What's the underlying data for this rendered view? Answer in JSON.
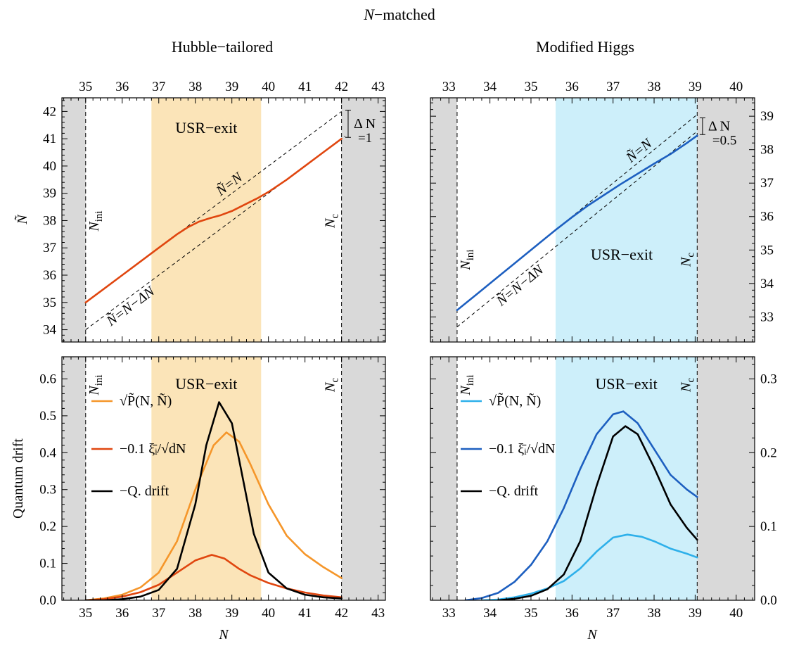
{
  "suptitle": "N−matched",
  "chart_data": [
    {
      "id": "top-left",
      "type": "line",
      "title": "Hubble−tailored",
      "ylabel": "Ñ",
      "xlabel": "",
      "xlim": [
        34.35,
        43.2
      ],
      "ylim": [
        33.55,
        42.5
      ],
      "xticks": [
        35,
        36,
        37,
        38,
        39,
        40,
        41,
        42,
        43
      ],
      "yticks": [
        34,
        35,
        36,
        37,
        38,
        39,
        40,
        41,
        42
      ],
      "shade_grey": [
        [
          34.35,
          35.0
        ],
        [
          42.0,
          43.2
        ]
      ],
      "band": {
        "x0": 36.8,
        "x1": 39.8,
        "color": "#fbe4b8",
        "label": "USR−exit"
      },
      "vlines": [
        {
          "x": 35.0,
          "label": "Nini"
        },
        {
          "x": 42.0,
          "label": "Nc"
        }
      ],
      "guides": [
        {
          "label": "Ñ=N",
          "x": [
            35,
            42
          ],
          "y": [
            35,
            42
          ]
        },
        {
          "label": "Ñ=N−ΔN",
          "x": [
            35,
            42.1
          ],
          "y": [
            34,
            41.1
          ]
        }
      ],
      "delta_label": [
        "Δ N",
        "=1"
      ],
      "series": [
        {
          "color": "#e0460f",
          "x": [
            35.0,
            35.5,
            36.0,
            36.5,
            37.0,
            37.5,
            37.8,
            38.1,
            38.4,
            38.7,
            39.0,
            39.3,
            39.7,
            40.0,
            40.5,
            41.0,
            41.5,
            42.0
          ],
          "y": [
            35.0,
            35.5,
            36.0,
            36.5,
            37.0,
            37.5,
            37.76,
            37.96,
            38.09,
            38.2,
            38.35,
            38.55,
            38.82,
            39.05,
            39.5,
            40.0,
            40.5,
            41.0
          ]
        }
      ]
    },
    {
      "id": "top-right",
      "type": "line",
      "title": "Modified Higgs",
      "ylabel": "",
      "xlabel": "",
      "xlim": [
        32.55,
        40.45
      ],
      "ylim": [
        32.25,
        39.55
      ],
      "xticks": [
        33,
        34,
        35,
        36,
        37,
        38,
        39,
        40
      ],
      "yticks": [
        33,
        34,
        35,
        36,
        37,
        38,
        39
      ],
      "shade_grey": [
        [
          32.55,
          33.2
        ],
        [
          39.05,
          40.45
        ]
      ],
      "band": {
        "x0": 35.6,
        "x1": 39.05,
        "color": "#cdeffa",
        "label": "USR−exit"
      },
      "vlines": [
        {
          "x": 33.2,
          "label": "Nini"
        },
        {
          "x": 39.05,
          "label": "Nc"
        }
      ],
      "guides": [
        {
          "label": "Ñ=N",
          "x": [
            35.6,
            39.05
          ],
          "y": [
            35.6,
            39.05
          ]
        },
        {
          "label": "Ñ=N−ΔN",
          "x": [
            33.2,
            39.05
          ],
          "y": [
            32.7,
            38.55
          ]
        }
      ],
      "delta_label": [
        "Δ N",
        "=0.5"
      ],
      "series": [
        {
          "color": "#1d5fc0",
          "x": [
            33.2,
            33.7,
            34.2,
            34.7,
            35.2,
            35.6,
            36.0,
            36.4,
            36.8,
            37.2,
            37.6,
            38.0,
            38.4,
            38.8,
            39.05
          ],
          "y": [
            33.2,
            33.7,
            34.2,
            34.7,
            35.2,
            35.6,
            35.98,
            36.34,
            36.66,
            36.98,
            37.28,
            37.58,
            37.87,
            38.2,
            38.42
          ]
        }
      ]
    },
    {
      "id": "bottom-left",
      "type": "line",
      "title": "",
      "ylabel": "Quantum drift",
      "xlabel": "N",
      "xlim": [
        34.35,
        43.2
      ],
      "ylim": [
        0,
        0.66
      ],
      "xticks": [
        35,
        36,
        37,
        38,
        39,
        40,
        41,
        42,
        43
      ],
      "yticks": [
        0.0,
        0.1,
        0.2,
        0.3,
        0.4,
        0.5,
        0.6
      ],
      "yticklabels": [
        "0.0",
        "0.1",
        "0.2",
        "0.3",
        "0.4",
        "0.5",
        "0.6"
      ],
      "shade_grey": [
        [
          34.35,
          35.0
        ],
        [
          42.0,
          43.2
        ]
      ],
      "band": {
        "x0": 36.8,
        "x1": 39.8,
        "color": "#fbe4b8",
        "label": "USR−exit"
      },
      "vlines": [
        {
          "x": 35.0,
          "label": "Nini"
        },
        {
          "x": 42.0,
          "label": "Nc"
        }
      ],
      "legend": [
        {
          "color": "#f5962a",
          "label": "√P̃(N, Ñ)"
        },
        {
          "color": "#e0460f",
          "label": "−0.1 ξ̄ᵢ/√dN"
        },
        {
          "color": "#000000",
          "label": "−Q. drift"
        }
      ],
      "series": [
        {
          "name": "√P̃(N, Ñ)",
          "color": "#f5962a",
          "x": [
            35.0,
            35.5,
            36.0,
            36.5,
            37.0,
            37.5,
            38.0,
            38.5,
            38.85,
            39.2,
            39.5,
            40.0,
            40.5,
            41.0,
            41.5,
            42.0
          ],
          "y": [
            0.0,
            0.005,
            0.015,
            0.035,
            0.075,
            0.16,
            0.3,
            0.42,
            0.455,
            0.43,
            0.37,
            0.26,
            0.175,
            0.125,
            0.09,
            0.06
          ]
        },
        {
          "name": "−0.1 ξ̄ᵢ/√dN",
          "color": "#e0460f",
          "x": [
            35.0,
            35.5,
            36.0,
            36.5,
            37.0,
            37.5,
            38.0,
            38.45,
            38.8,
            39.2,
            39.5,
            40.0,
            40.5,
            41.0,
            41.5,
            42.0
          ],
          "y": [
            0.0,
            0.003,
            0.01,
            0.022,
            0.042,
            0.075,
            0.108,
            0.123,
            0.113,
            0.085,
            0.068,
            0.047,
            0.032,
            0.021,
            0.013,
            0.008
          ]
        },
        {
          "name": "−Q. drift",
          "color": "#000000",
          "x": [
            35.0,
            35.5,
            36.0,
            36.5,
            37.0,
            37.5,
            38.0,
            38.3,
            38.65,
            39.0,
            39.3,
            39.6,
            40.0,
            40.5,
            41.0,
            41.5,
            42.0
          ],
          "y": [
            0.0,
            0.0,
            0.003,
            0.01,
            0.028,
            0.085,
            0.26,
            0.42,
            0.537,
            0.48,
            0.33,
            0.18,
            0.075,
            0.032,
            0.015,
            0.008,
            0.005
          ]
        }
      ]
    },
    {
      "id": "bottom-right",
      "type": "line",
      "title": "",
      "ylabel": "",
      "xlabel": "N",
      "xlim": [
        32.55,
        40.45
      ],
      "ylim": [
        0,
        0.33
      ],
      "xticks": [
        33,
        34,
        35,
        36,
        37,
        38,
        39,
        40
      ],
      "yticks": [
        0.0,
        0.1,
        0.2,
        0.3
      ],
      "yticklabels": [
        "0.0",
        "0.1",
        "0.2",
        "0.3"
      ],
      "shade_grey": [
        [
          32.55,
          33.2
        ],
        [
          39.05,
          40.45
        ]
      ],
      "band": {
        "x0": 35.6,
        "x1": 39.05,
        "color": "#cdeffa",
        "label": "USR−exit"
      },
      "vlines": [
        {
          "x": 33.2,
          "label": "Nini"
        },
        {
          "x": 39.05,
          "label": "Nc"
        }
      ],
      "legend": [
        {
          "color": "#2eb0ea",
          "label": "√P̃(N, Ñ)"
        },
        {
          "color": "#1d5fc0",
          "label": "−0.1 ξ̄ᵢ/√dN"
        },
        {
          "color": "#000000",
          "label": "−Q. drift"
        }
      ],
      "series": [
        {
          "name": "√P̃(N, Ñ)",
          "color": "#2eb0ea",
          "x": [
            33.8,
            34.2,
            34.6,
            35.0,
            35.4,
            35.8,
            36.2,
            36.6,
            37.0,
            37.35,
            37.7,
            38.0,
            38.4,
            38.8,
            39.05
          ],
          "y": [
            0.0,
            0.001,
            0.004,
            0.009,
            0.016,
            0.026,
            0.043,
            0.066,
            0.085,
            0.089,
            0.086,
            0.08,
            0.07,
            0.063,
            0.058
          ]
        },
        {
          "name": "−0.1 ξ̄ᵢ/√dN",
          "color": "#1d5fc0",
          "x": [
            33.4,
            33.8,
            34.2,
            34.6,
            35.0,
            35.4,
            35.8,
            36.2,
            36.6,
            37.0,
            37.25,
            37.6,
            38.0,
            38.4,
            38.8,
            39.05
          ],
          "y": [
            0.0,
            0.003,
            0.01,
            0.025,
            0.048,
            0.08,
            0.125,
            0.178,
            0.225,
            0.252,
            0.256,
            0.24,
            0.205,
            0.17,
            0.15,
            0.14
          ]
        },
        {
          "name": "−Q. drift",
          "color": "#000000",
          "x": [
            34.2,
            34.6,
            35.0,
            35.4,
            35.8,
            36.2,
            36.6,
            37.0,
            37.3,
            37.6,
            38.0,
            38.4,
            38.8,
            39.05
          ],
          "y": [
            0.0,
            0.002,
            0.006,
            0.015,
            0.035,
            0.08,
            0.155,
            0.222,
            0.236,
            0.225,
            0.18,
            0.13,
            0.098,
            0.082
          ]
        }
      ]
    }
  ]
}
